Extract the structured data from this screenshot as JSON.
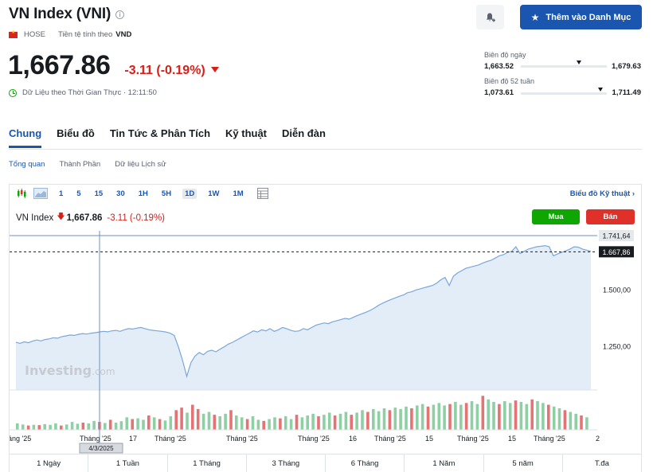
{
  "header": {
    "title": "VN Index (VNI)",
    "exchange": "HOSE",
    "currency_label": "Tiền tệ tính theo",
    "currency": "VND",
    "price": "1,667.86",
    "change": "-3.11 (-0.19%)",
    "realtime": "Dữ Liệu theo Thời Gian Thực · 12:11:50",
    "watchlist_button": "Thêm vào Danh Mục"
  },
  "ranges": {
    "day_label": "Biên độ ngày",
    "day_low": "1,663.52",
    "day_high": "1,679.63",
    "day_position": 0.68,
    "week52_label": "Biên độ 52 tuần",
    "week52_low": "1,073.61",
    "week52_high": "1,711.49",
    "week52_position": 0.93
  },
  "tabs": [
    "Chung",
    "Biểu đồ",
    "Tin Tức & Phân Tích",
    "Kỹ thuật",
    "Diễn đàn"
  ],
  "subtabs": [
    "Tổng quan",
    "Thành Phần",
    "Dữ liệu Lịch sử"
  ],
  "chart": {
    "timeframes": [
      "1",
      "5",
      "15",
      "30",
      "1H",
      "5H",
      "1D",
      "1W",
      "1M"
    ],
    "active_timeframe": "1D",
    "tech_link": "Biểu đồ Kỹ thuật",
    "legend_name": "VN Index",
    "legend_arrow": "🡇",
    "legend_price": "1,667.86",
    "legend_change": "-3.11 (-0.19%)",
    "buy": "Mua",
    "sell": "Bán",
    "watermark_main": "Investing",
    "watermark_suffix": ".com",
    "crosshair_date": "4/3/2025",
    "periods": [
      "1 Ngày",
      "1 Tuần",
      "1 Tháng",
      "3 Tháng",
      "6 Tháng",
      "1 Năm",
      "5 năm",
      "T.đa"
    ],
    "colors": {
      "line": "#7aa7d8",
      "fill": "#e3edf8",
      "vol_up": "#8fcfa4",
      "vol_down": "#e57373"
    }
  },
  "chart_data": {
    "type": "area",
    "y_ticks": [
      "1.500,00",
      "1.250,00"
    ],
    "y_tick_values": [
      1500,
      1250
    ],
    "ylim": [
      1060,
      1760
    ],
    "markers": [
      {
        "label": "1.741,64",
        "value": 1741.64,
        "style": "solid"
      },
      {
        "label": "1.667,86",
        "value": 1667.86,
        "style": "dashed"
      }
    ],
    "x_tick_labels": [
      "áng '25",
      "Tháng '25",
      "17",
      "Tháng '25",
      "Tháng '25",
      "Tháng '25",
      "16",
      "Tháng '25",
      "15",
      "Tháng '25",
      "15",
      "Tháng '25",
      "2"
    ],
    "series": [
      {
        "values": [
          1270,
          1265,
          1272,
          1268,
          1275,
          1280,
          1276,
          1282,
          1285,
          1290,
          1288,
          1295,
          1298,
          1302,
          1300,
          1305,
          1308,
          1306,
          1310,
          1312,
          1315,
          1318,
          1316,
          1320,
          1322,
          1318,
          1325,
          1330,
          1328,
          1332,
          1335,
          1330,
          1325,
          1322,
          1320,
          1318,
          1315,
          1310,
          1300,
          1250,
          1190,
          1120,
          1180,
          1210,
          1225,
          1215,
          1230,
          1235,
          1228,
          1240,
          1250,
          1262,
          1270,
          1280,
          1290,
          1300,
          1310,
          1320,
          1315,
          1325,
          1320,
          1330,
          1318,
          1325,
          1335,
          1330,
          1322,
          1318,
          1320,
          1330,
          1325,
          1335,
          1345,
          1350,
          1355,
          1352,
          1360,
          1365,
          1370,
          1375,
          1372,
          1380,
          1388,
          1395,
          1402,
          1410,
          1420,
          1432,
          1442,
          1450,
          1458,
          1465,
          1472,
          1478,
          1488,
          1492,
          1500,
          1505,
          1510,
          1515,
          1520,
          1530,
          1545,
          1555,
          1520,
          1560,
          1575,
          1585,
          1595,
          1600,
          1605,
          1610,
          1618,
          1625,
          1630,
          1640,
          1650,
          1655,
          1665,
          1670,
          1690,
          1660,
          1670,
          1680,
          1685,
          1690,
          1692,
          1695,
          1690,
          1650,
          1658,
          1665,
          1672,
          1680,
          1690,
          1688,
          1680,
          1675,
          1670
        ]
      }
    ],
    "volume": [
      {
        "v": 0.18,
        "d": 0
      },
      {
        "v": 0.15,
        "d": 0
      },
      {
        "v": 0.12,
        "d": 1
      },
      {
        "v": 0.14,
        "d": 0
      },
      {
        "v": 0.13,
        "d": 1
      },
      {
        "v": 0.16,
        "d": 0
      },
      {
        "v": 0.14,
        "d": 0
      },
      {
        "v": 0.18,
        "d": 0
      },
      {
        "v": 0.12,
        "d": 1
      },
      {
        "v": 0.15,
        "d": 0
      },
      {
        "v": 0.22,
        "d": 0
      },
      {
        "v": 0.17,
        "d": 0
      },
      {
        "v": 0.2,
        "d": 1
      },
      {
        "v": 0.18,
        "d": 0
      },
      {
        "v": 0.25,
        "d": 0
      },
      {
        "v": 0.22,
        "d": 1
      },
      {
        "v": 0.19,
        "d": 0
      },
      {
        "v": 0.28,
        "d": 1
      },
      {
        "v": 0.2,
        "d": 0
      },
      {
        "v": 0.24,
        "d": 0
      },
      {
        "v": 0.35,
        "d": 0
      },
      {
        "v": 0.3,
        "d": 1
      },
      {
        "v": 0.32,
        "d": 0
      },
      {
        "v": 0.28,
        "d": 0
      },
      {
        "v": 0.4,
        "d": 1
      },
      {
        "v": 0.35,
        "d": 0
      },
      {
        "v": 0.3,
        "d": 1
      },
      {
        "v": 0.26,
        "d": 0
      },
      {
        "v": 0.38,
        "d": 0
      },
      {
        "v": 0.55,
        "d": 1
      },
      {
        "v": 0.62,
        "d": 1
      },
      {
        "v": 0.48,
        "d": 0
      },
      {
        "v": 0.7,
        "d": 1
      },
      {
        "v": 0.58,
        "d": 1
      },
      {
        "v": 0.45,
        "d": 0
      },
      {
        "v": 0.5,
        "d": 0
      },
      {
        "v": 0.42,
        "d": 1
      },
      {
        "v": 0.38,
        "d": 0
      },
      {
        "v": 0.45,
        "d": 0
      },
      {
        "v": 0.55,
        "d": 1
      },
      {
        "v": 0.4,
        "d": 0
      },
      {
        "v": 0.35,
        "d": 0
      },
      {
        "v": 0.3,
        "d": 1
      },
      {
        "v": 0.38,
        "d": 0
      },
      {
        "v": 0.28,
        "d": 0
      },
      {
        "v": 0.25,
        "d": 1
      },
      {
        "v": 0.3,
        "d": 0
      },
      {
        "v": 0.35,
        "d": 0
      },
      {
        "v": 0.32,
        "d": 1
      },
      {
        "v": 0.38,
        "d": 0
      },
      {
        "v": 0.3,
        "d": 0
      },
      {
        "v": 0.42,
        "d": 1
      },
      {
        "v": 0.35,
        "d": 0
      },
      {
        "v": 0.4,
        "d": 0
      },
      {
        "v": 0.45,
        "d": 0
      },
      {
        "v": 0.38,
        "d": 1
      },
      {
        "v": 0.42,
        "d": 0
      },
      {
        "v": 0.48,
        "d": 0
      },
      {
        "v": 0.4,
        "d": 1
      },
      {
        "v": 0.45,
        "d": 0
      },
      {
        "v": 0.5,
        "d": 0
      },
      {
        "v": 0.42,
        "d": 1
      },
      {
        "v": 0.48,
        "d": 0
      },
      {
        "v": 0.55,
        "d": 0
      },
      {
        "v": 0.5,
        "d": 1
      },
      {
        "v": 0.58,
        "d": 0
      },
      {
        "v": 0.52,
        "d": 0
      },
      {
        "v": 0.6,
        "d": 0
      },
      {
        "v": 0.55,
        "d": 1
      },
      {
        "v": 0.62,
        "d": 0
      },
      {
        "v": 0.58,
        "d": 0
      },
      {
        "v": 0.65,
        "d": 0
      },
      {
        "v": 0.6,
        "d": 1
      },
      {
        "v": 0.68,
        "d": 0
      },
      {
        "v": 0.72,
        "d": 0
      },
      {
        "v": 0.65,
        "d": 1
      },
      {
        "v": 0.7,
        "d": 0
      },
      {
        "v": 0.75,
        "d": 0
      },
      {
        "v": 0.68,
        "d": 0
      },
      {
        "v": 0.72,
        "d": 1
      },
      {
        "v": 0.78,
        "d": 0
      },
      {
        "v": 0.7,
        "d": 0
      },
      {
        "v": 0.75,
        "d": 1
      },
      {
        "v": 0.8,
        "d": 0
      },
      {
        "v": 0.72,
        "d": 0
      },
      {
        "v": 0.95,
        "d": 1
      },
      {
        "v": 0.85,
        "d": 0
      },
      {
        "v": 0.78,
        "d": 0
      },
      {
        "v": 0.72,
        "d": 1
      },
      {
        "v": 0.8,
        "d": 0
      },
      {
        "v": 0.75,
        "d": 0
      },
      {
        "v": 0.82,
        "d": 1
      },
      {
        "v": 0.78,
        "d": 0
      },
      {
        "v": 0.72,
        "d": 0
      },
      {
        "v": 0.85,
        "d": 1
      },
      {
        "v": 0.8,
        "d": 0
      },
      {
        "v": 0.75,
        "d": 0
      },
      {
        "v": 0.7,
        "d": 1
      },
      {
        "v": 0.65,
        "d": 0
      },
      {
        "v": 0.6,
        "d": 0
      },
      {
        "v": 0.55,
        "d": 1
      },
      {
        "v": 0.5,
        "d": 0
      },
      {
        "v": 0.45,
        "d": 0
      },
      {
        "v": 0.4,
        "d": 1
      },
      {
        "v": 0.35,
        "d": 0
      }
    ]
  }
}
